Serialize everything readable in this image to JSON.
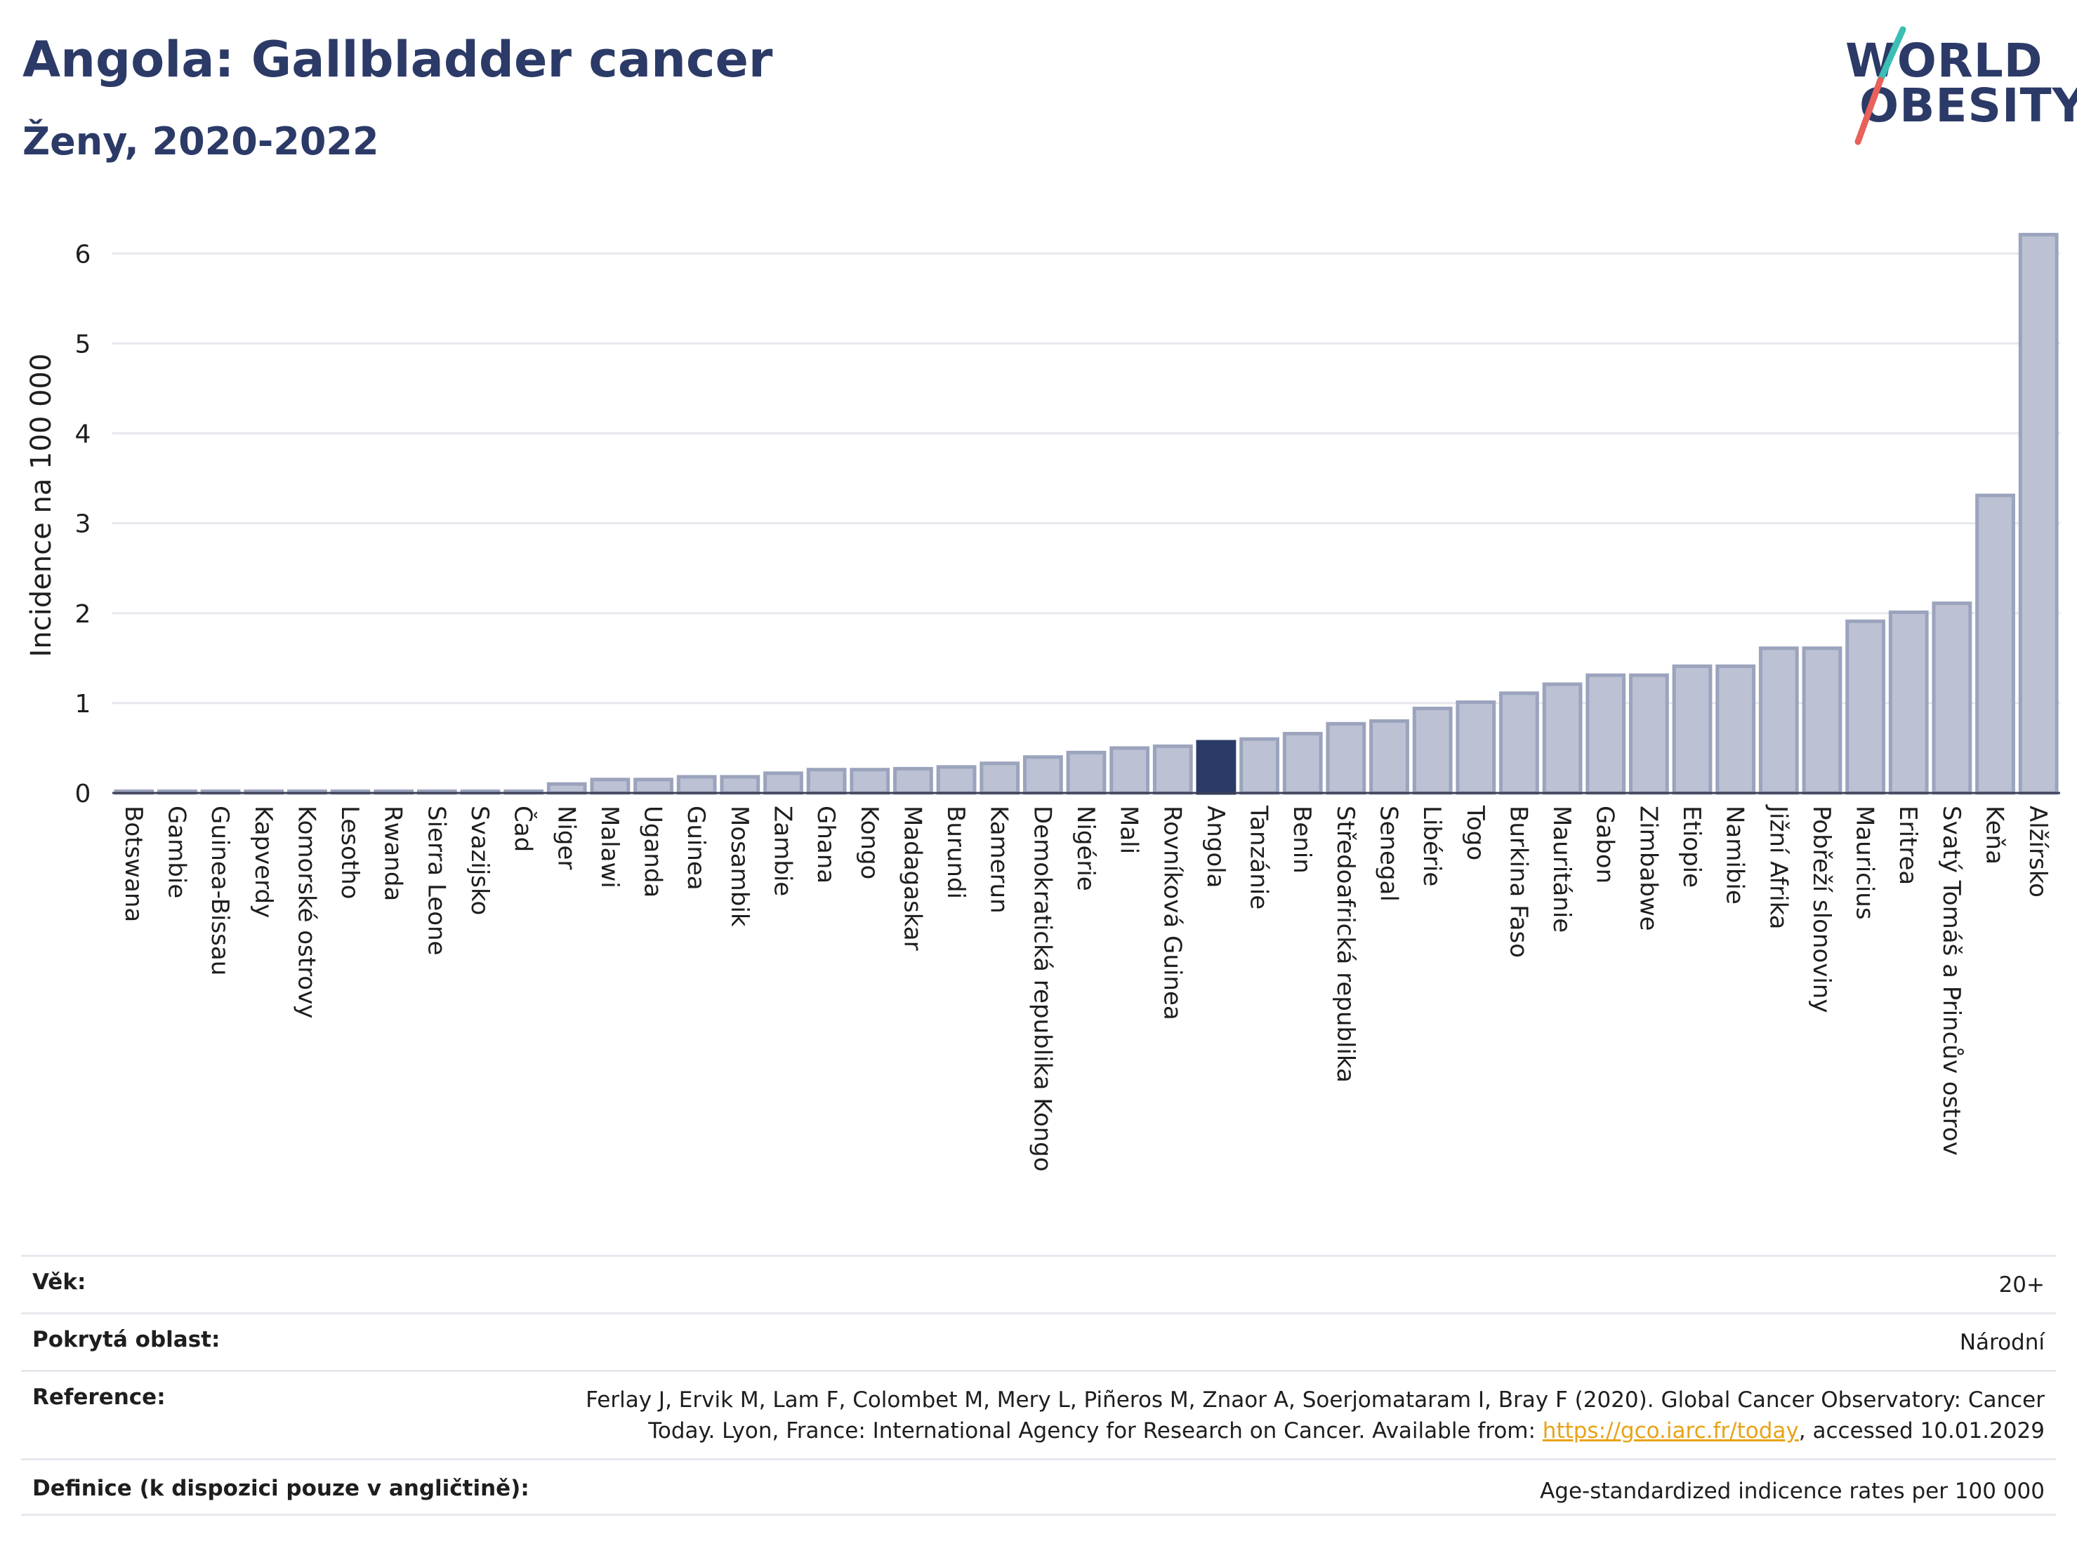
{
  "header": {
    "title": "Angola: Gallbladder cancer",
    "subtitle": "Ženy, 2020-2022"
  },
  "logo": {
    "line1": "WORLD",
    "line2": "OBESITY",
    "colors": {
      "text": "#2b3a67",
      "accent_teal": "#3bbfb5",
      "accent_red": "#e8615a"
    }
  },
  "colors": {
    "bar_fill": "#bcc1d3",
    "bar_stroke": "#9ba3bd",
    "highlight": "#2b3a67",
    "gridline": "#e6e8ee",
    "axis_text": "#1e1e1e",
    "link": "#e8a317"
  },
  "chart_data": {
    "type": "bar",
    "ylabel": "Incidence na 100 000",
    "ylim": [
      0,
      6.4
    ],
    "yticks": [
      0,
      1,
      2,
      3,
      4,
      5,
      6
    ],
    "grid": true,
    "highlight_category": "Angola",
    "categories": [
      "Botswana",
      "Gambie",
      "Guinea-Bissau",
      "Kapverdy",
      "Komorské ostrovy",
      "Lesotho",
      "Rwanda",
      "Sierra Leone",
      "Svazijsko",
      "Čad",
      "Niger",
      "Malawi",
      "Uganda",
      "Guinea",
      "Mosambik",
      "Zambie",
      "Ghana",
      "Kongo",
      "Madagaskar",
      "Burundi",
      "Kamerun",
      "Demokratická republika Kongo",
      "Nigérie",
      "Mali",
      "Rovníková Guinea",
      "Angola",
      "Tanzánie",
      "Benin",
      "Středoafrická republika",
      "Senegal",
      "Libérie",
      "Togo",
      "Burkina Faso",
      "Mauritánie",
      "Gabon",
      "Zimbabwe",
      "Etiopie",
      "Namibie",
      "Jižní Afrika",
      "Pobřeží slonoviny",
      "Mauricius",
      "Eritrea",
      "Svatý Tomáš a Princův ostrov",
      "Keňa",
      "Alžírsko"
    ],
    "values": [
      0.02,
      0.02,
      0.02,
      0.02,
      0.02,
      0.02,
      0.02,
      0.02,
      0.02,
      0.02,
      0.1,
      0.15,
      0.15,
      0.18,
      0.18,
      0.22,
      0.26,
      0.26,
      0.27,
      0.29,
      0.33,
      0.4,
      0.45,
      0.5,
      0.52,
      0.57,
      0.6,
      0.66,
      0.77,
      0.8,
      0.94,
      1.01,
      1.11,
      1.21,
      1.31,
      1.31,
      1.41,
      1.41,
      1.61,
      1.61,
      1.91,
      2.01,
      2.11,
      3.31,
      6.21
    ]
  },
  "info": {
    "age_label": "Věk:",
    "age_value": "20+",
    "coverage_label": "Pokrytá oblast:",
    "coverage_value": "Národní",
    "reference_label": "Reference:",
    "reference_text_1": "Ferlay J, Ervik M, Lam F, Colombet M, Mery L, Piñeros M, Znaor A, Soerjomataram I, Bray F (2020). Global Cancer Observatory: Cancer",
    "reference_text_2": "Today. Lyon, France: International Agency for Research on Cancer. Available from: ",
    "reference_link": "https://gco.iarc.fr/today",
    "reference_text_3": ", accessed 10.01.2029",
    "definition_label": "Definice (k dispozici pouze v angličtině):",
    "definition_value": "Age-standardized indicence rates per 100 000"
  }
}
